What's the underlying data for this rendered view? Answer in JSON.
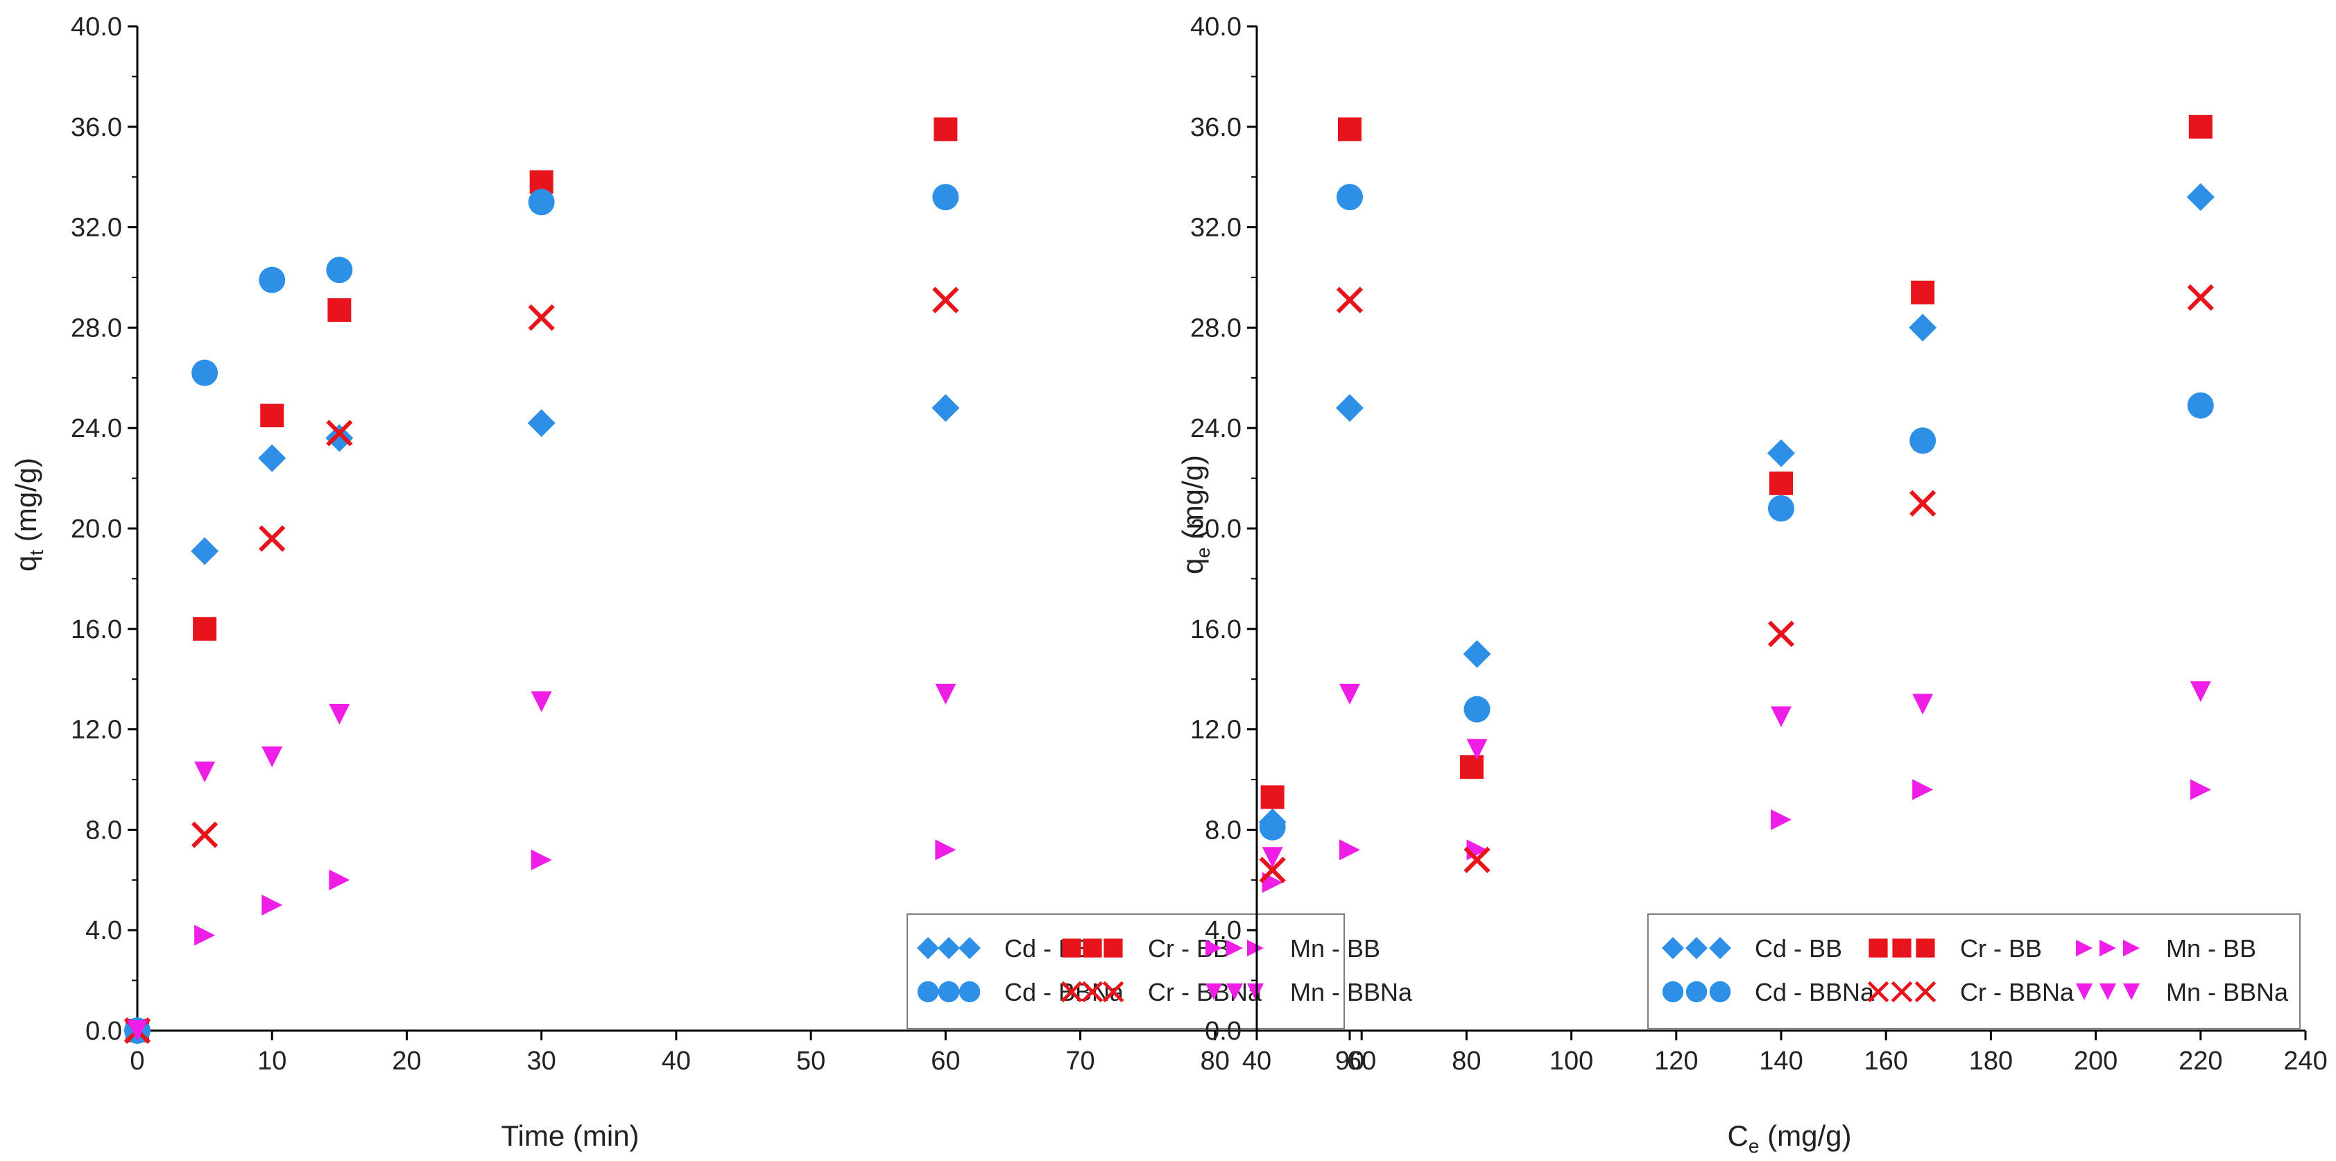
{
  "colors": {
    "cd": "#2e8fe6",
    "cr": "#e8141c",
    "mn": "#ee1ee6",
    "axis": "#000000",
    "legend_border": "#7f7f7f"
  },
  "chart_data": [
    {
      "type": "scatter",
      "title": "",
      "xlabel": "Time (min)",
      "ylabel_main": "q",
      "ylabel_sub": "t",
      "ylabel_unit": " (mg/g)",
      "xlim": [
        0,
        90
      ],
      "ylim": [
        0,
        40
      ],
      "x_ticks": [
        0,
        10,
        20,
        30,
        40,
        50,
        60,
        70,
        80,
        90
      ],
      "x_tick_labels": [
        "0",
        "10",
        "20",
        "30",
        "40",
        "50",
        "60",
        "70",
        "80",
        "90"
      ],
      "y_ticks": [
        0,
        4,
        8,
        12,
        16,
        20,
        24,
        28,
        32,
        36,
        40
      ],
      "y_tick_labels": [
        "0.0",
        "4.0",
        "8.0",
        "12.0",
        "16.0",
        "20.0",
        "24.0",
        "28.0",
        "32.0",
        "36.0",
        "40.0"
      ],
      "grid": false,
      "legend_position": "bottom-right",
      "series": [
        {
          "name": "Cd - BB",
          "marker": "diamond",
          "color": "#2e8fe6",
          "x": [
            0,
            5,
            10,
            15,
            30,
            60,
            90
          ],
          "y": [
            0,
            19.1,
            22.8,
            23.6,
            24.2,
            24.8,
            24.8
          ]
        },
        {
          "name": "Cr - BB",
          "marker": "square",
          "color": "#e8141c",
          "x": [
            0,
            5,
            10,
            15,
            30,
            60,
            90
          ],
          "y": [
            0,
            16.0,
            24.5,
            28.7,
            33.8,
            35.9,
            35.9
          ]
        },
        {
          "name": "Mn - BB",
          "marker": "triangle-right",
          "color": "#ee1ee6",
          "x": [
            0,
            5,
            10,
            15,
            30,
            60,
            90
          ],
          "y": [
            0,
            3.8,
            5.0,
            6.0,
            6.8,
            7.2,
            7.2
          ]
        },
        {
          "name": "Cd - BBNa",
          "marker": "circle",
          "color": "#2e8fe6",
          "x": [
            0,
            5,
            10,
            15,
            30,
            60,
            90
          ],
          "y": [
            0,
            26.2,
            29.9,
            30.3,
            33.0,
            33.2,
            33.2
          ]
        },
        {
          "name": "Cr - BBNa",
          "marker": "x",
          "color": "#e8141c",
          "x": [
            0,
            5,
            10,
            15,
            30,
            60,
            90
          ],
          "y": [
            0,
            7.8,
            19.6,
            23.8,
            28.4,
            29.1,
            29.1
          ]
        },
        {
          "name": "Mn - BBNa",
          "marker": "triangle-down",
          "color": "#ee1ee6",
          "x": [
            0,
            5,
            10,
            15,
            30,
            60,
            90
          ],
          "y": [
            0,
            10.3,
            10.9,
            12.6,
            13.1,
            13.4,
            13.4
          ]
        }
      ]
    },
    {
      "type": "scatter",
      "title": "",
      "xlabel_main": "C",
      "xlabel_sub": "e",
      "xlabel_unit": " (mg/g)",
      "ylabel_main": "q",
      "ylabel_sub": "e",
      "ylabel_unit": " (mg/g)",
      "xlim": [
        40,
        240
      ],
      "ylim": [
        0,
        40
      ],
      "x_ticks": [
        40,
        60,
        80,
        100,
        120,
        140,
        160,
        180,
        200,
        220,
        240
      ],
      "x_tick_labels": [
        "40",
        "60",
        "80",
        "100",
        "120",
        "140",
        "160",
        "180",
        "200",
        "220",
        "240"
      ],
      "y_ticks": [
        0,
        4,
        8,
        12,
        16,
        20,
        24,
        28,
        32,
        36,
        40
      ],
      "y_tick_labels": [
        "0.0",
        "4.0",
        "8.0",
        "12.0",
        "16.0",
        "20.0",
        "24.0",
        "28.0",
        "32.0",
        "36.0",
        "40.0"
      ],
      "grid": false,
      "legend_position": "bottom-right",
      "series": [
        {
          "name": "Cd - BB",
          "marker": "diamond",
          "color": "#2e8fe6",
          "x": [
            43,
            82,
            140,
            167,
            220
          ],
          "y": [
            8.3,
            15.0,
            23.0,
            28.0,
            33.2
          ]
        },
        {
          "name": "Cr - BB",
          "marker": "square",
          "color": "#e8141c",
          "x": [
            43,
            81,
            140,
            167,
            220
          ],
          "y": [
            9.3,
            10.5,
            21.8,
            29.4,
            36.0
          ]
        },
        {
          "name": "Mn - BB",
          "marker": "triangle-right",
          "color": "#ee1ee6",
          "x": [
            43,
            82,
            140,
            167,
            220
          ],
          "y": [
            5.9,
            7.2,
            8.4,
            9.6,
            9.6
          ]
        },
        {
          "name": "Cd - BBNa",
          "marker": "circle",
          "color": "#2e8fe6",
          "x": [
            43,
            82,
            140,
            167,
            220
          ],
          "y": [
            8.1,
            12.8,
            20.8,
            23.5,
            24.9
          ]
        },
        {
          "name": "Cr - BBNa",
          "marker": "x",
          "color": "#e8141c",
          "x": [
            43,
            82,
            140,
            167,
            220
          ],
          "y": [
            6.4,
            6.8,
            15.8,
            21.0,
            29.2
          ]
        },
        {
          "name": "Mn - BBNa",
          "marker": "triangle-down",
          "color": "#ee1ee6",
          "x": [
            43,
            82,
            140,
            167,
            220
          ],
          "y": [
            6.9,
            11.2,
            12.5,
            13.0,
            13.5
          ]
        }
      ]
    }
  ]
}
